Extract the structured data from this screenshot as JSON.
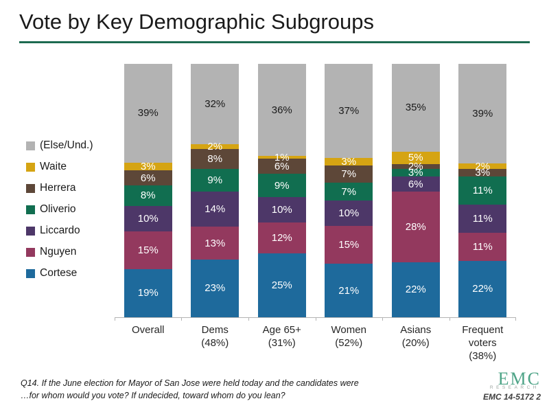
{
  "slide": {
    "title": "Vote by Key Demographic Subgroups",
    "accent_color": "#1d6a50"
  },
  "chart_data": {
    "type": "bar",
    "subtype": "stacked-100-percent",
    "title": "Vote by Key Demographic Subgroups",
    "categories": [
      "Overall",
      "Dems\n(48%)",
      "Age 65+\n(31%)",
      "Women\n(52%)",
      "Asians\n(20%)",
      "Frequent\nvoters\n(38%)"
    ],
    "series": [
      {
        "name": "Cortese",
        "color": "#1e6a9c",
        "label_color": "#ffffff",
        "values": [
          19,
          23,
          25,
          21,
          22,
          22
        ]
      },
      {
        "name": "Nguyen",
        "color": "#93395e",
        "label_color": "#ffffff",
        "values": [
          15,
          13,
          12,
          15,
          28,
          11
        ]
      },
      {
        "name": "Liccardo",
        "color": "#4d3768",
        "label_color": "#ffffff",
        "values": [
          10,
          14,
          10,
          10,
          6,
          11
        ]
      },
      {
        "name": "Oliverio",
        "color": "#116e50",
        "label_color": "#ffffff",
        "values": [
          8,
          9,
          9,
          7,
          3,
          11
        ]
      },
      {
        "name": "Herrera",
        "color": "#5d4738",
        "label_color": "#ffffff",
        "values": [
          6,
          8,
          6,
          7,
          2,
          3
        ]
      },
      {
        "name": "Waite",
        "color": "#d5a413",
        "label_color": "#ffffff",
        "values": [
          3,
          2,
          1,
          3,
          5,
          2
        ]
      },
      {
        "name": "(Else/Und.)",
        "color": "#b3b3b3",
        "label_color": "#1a1a1a",
        "values": [
          39,
          32,
          36,
          37,
          35,
          39
        ]
      }
    ],
    "legend_order": [
      "(Else/Und.)",
      "Waite",
      "Herrera",
      "Oliverio",
      "Liccardo",
      "Nguyen",
      "Cortese"
    ],
    "legend_position": "left",
    "value_suffix": "%",
    "ylim": [
      0,
      100
    ],
    "grid": false,
    "axis_color": "#b3b3b3"
  },
  "footer": {
    "question_line1": "Q14. If the June election for Mayor of San Jose were held today and the candidates were",
    "question_line2": "…for whom would you vote? If undecided, toward whom do you lean?",
    "logo_text": "EMC",
    "logo_subtext": "RESEARCH",
    "doc_code": "EMC 14-5172 2"
  }
}
